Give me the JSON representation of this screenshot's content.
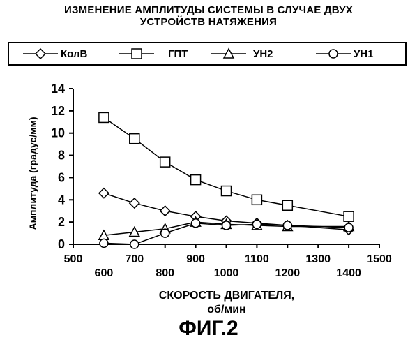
{
  "title_lines": [
    "ИЗМЕНЕНИЕ АМПЛИТУДЫ СИСТЕМЫ В СЛУЧАЕ ДВУХ",
    "УСТРОЙСТВ НАТЯЖЕНИЯ"
  ],
  "figure_caption": "ФИГ.2",
  "chart_data": {
    "type": "line",
    "title": "ИЗМЕНЕНИЕ АМПЛИТУДЫ СИСТЕМЫ В СЛУЧАЕ ДВУХ УСТРОЙСТВ НАТЯЖЕНИЯ",
    "xlabel_lines": [
      "СКОРОСТЬ ДВИГАТЕЛЯ,",
      "об/мин"
    ],
    "ylabel": "Амплитуда (градус/мм)",
    "xlim": [
      500,
      1500
    ],
    "ylim": [
      0,
      14
    ],
    "x_ticks_major": [
      500,
      700,
      900,
      1100,
      1300,
      1500
    ],
    "x_ticks_minor": [
      600,
      800,
      1000,
      1200,
      1400
    ],
    "y_ticks": [
      0,
      2,
      4,
      6,
      8,
      10,
      12,
      14
    ],
    "legend_position": "top",
    "grid": false,
    "x": [
      600,
      700,
      800,
      900,
      1000,
      1100,
      1200,
      1400
    ],
    "series": [
      {
        "name": "КолВ",
        "marker": "diamond",
        "values": [
          4.6,
          3.7,
          3.0,
          2.5,
          2.1,
          1.9,
          1.7,
          1.3
        ]
      },
      {
        "name": "ГПТ",
        "marker": "square",
        "values": [
          11.4,
          9.5,
          7.4,
          5.8,
          4.8,
          4.0,
          3.5,
          2.5
        ]
      },
      {
        "name": "УН2",
        "marker": "triangle",
        "values": [
          0.8,
          1.1,
          1.4,
          2.0,
          1.8,
          1.7,
          1.6,
          1.6
        ]
      },
      {
        "name": "УН1",
        "marker": "circle",
        "values": [
          0.1,
          0.0,
          1.0,
          1.9,
          1.7,
          1.8,
          1.7,
          1.5
        ]
      }
    ]
  }
}
